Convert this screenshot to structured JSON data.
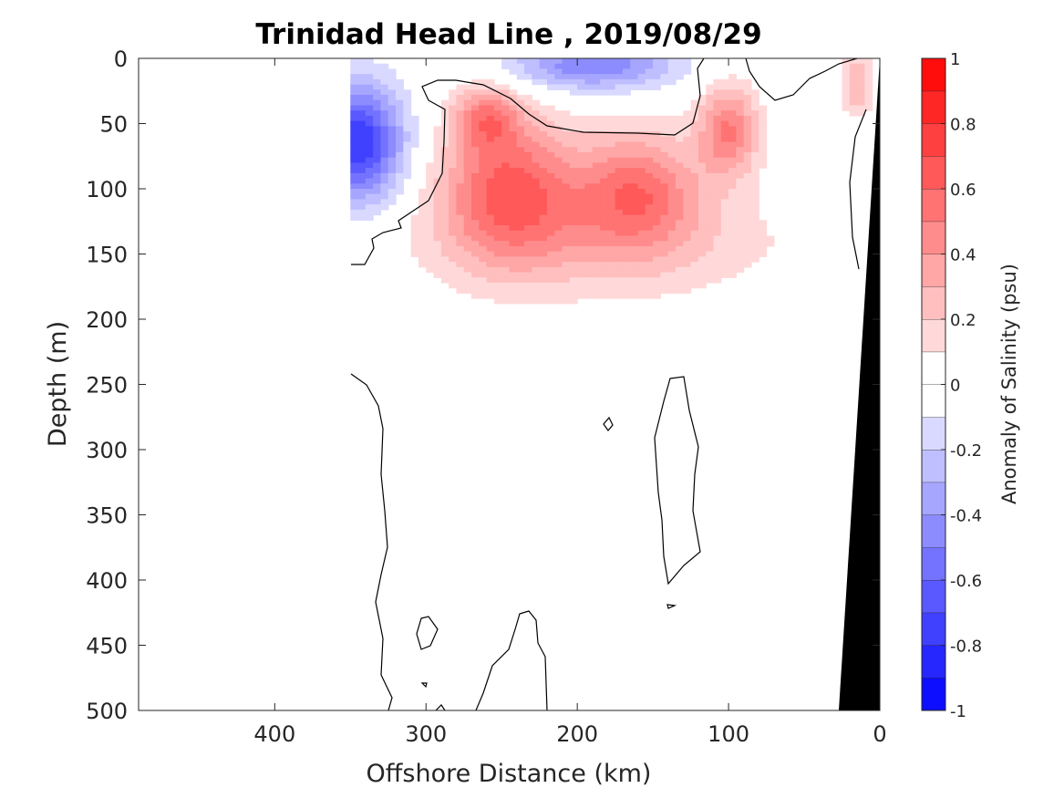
{
  "chart_data": {
    "type": "heatmap",
    "title": "Trinidad Head Line , 2019/08/29",
    "xlabel": "Offshore Distance (km)",
    "ylabel": "Depth (m)",
    "xlim": [
      490,
      0
    ],
    "ylim": [
      0,
      500
    ],
    "x_ticks": [
      "400",
      "300",
      "200",
      "100",
      "0"
    ],
    "y_ticks": [
      "0",
      "50",
      "100",
      "150",
      "200",
      "250",
      "300",
      "350",
      "400",
      "450",
      "500"
    ],
    "colorbar": {
      "label": "Anomaly of Salinity (psu)",
      "range": [
        -1,
        1
      ],
      "ticks": [
        "1",
        "0.8",
        "0.6",
        "0.4",
        "0.2",
        "0",
        "-0.2",
        "-0.4",
        "-0.6",
        "-0.8",
        "-1"
      ],
      "levels": [
        -1,
        -0.9,
        -0.8,
        -0.7,
        -0.6,
        -0.5,
        -0.4,
        -0.3,
        -0.2,
        -0.1,
        0,
        0.1,
        0.2,
        0.3,
        0.4,
        0.5,
        0.6,
        0.7,
        0.8,
        0.9,
        1
      ],
      "colormap_low": "#0000ff",
      "colormap_mid": "#ffffff",
      "colormap_high": "#ff0000"
    },
    "data_extent_x": [
      350,
      0
    ],
    "features": [
      {
        "kind": "salinity-max-core",
        "x": 245,
        "depth": 100,
        "value": 0.6
      },
      {
        "kind": "salinity-max-core",
        "x": 160,
        "depth": 100,
        "value": 0.5
      },
      {
        "kind": "salinity-max-core",
        "x": 100,
        "depth": 55,
        "value": 0.5
      },
      {
        "kind": "salinity-max-core",
        "x": 260,
        "depth": 45,
        "value": 0.4
      },
      {
        "kind": "salinity-min-core",
        "x": 345,
        "depth": 65,
        "value": -0.8
      },
      {
        "kind": "salinity-min-core",
        "x": 190,
        "depth": 5,
        "value": -0.5
      },
      {
        "kind": "salinity-max-core",
        "x": 15,
        "depth": 20,
        "value": 0.3
      }
    ],
    "grid": false,
    "bathymetry_color": "#000000"
  }
}
